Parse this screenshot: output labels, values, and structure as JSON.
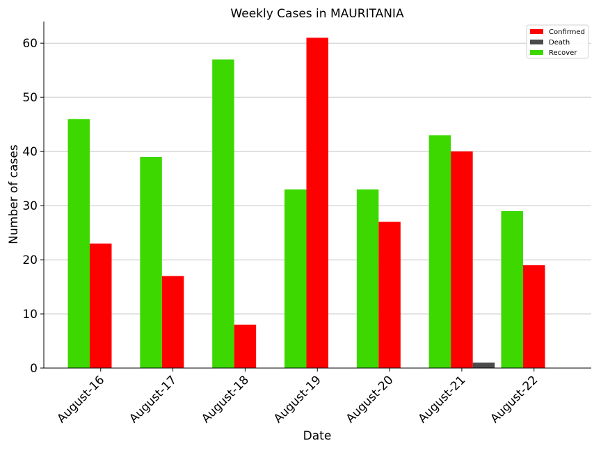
{
  "chart_data": {
    "type": "bar",
    "title": "Weekly Cases in MAURITANIA",
    "xlabel": "Date",
    "ylabel": "Number of cases",
    "categories": [
      "August-16",
      "August-17",
      "August-18",
      "August-19",
      "August-20",
      "August-21",
      "August-22"
    ],
    "series": [
      {
        "name": "Recover",
        "color": "#3dd800",
        "values": [
          46,
          39,
          57,
          33,
          33,
          43,
          29
        ]
      },
      {
        "name": "Confirmed",
        "color": "#ff0000",
        "values": [
          23,
          17,
          8,
          61,
          27,
          40,
          19
        ]
      },
      {
        "name": "Death",
        "color": "#4a4a4a",
        "values": [
          0,
          0,
          0,
          0,
          0,
          1,
          0
        ]
      }
    ],
    "legend": [
      "Confirmed",
      "Death",
      "Recover"
    ],
    "legend_position": "top-right",
    "ylim": [
      0,
      64
    ],
    "yticks": [
      0,
      10,
      20,
      30,
      40,
      50,
      60
    ],
    "grid": "horizontal"
  }
}
